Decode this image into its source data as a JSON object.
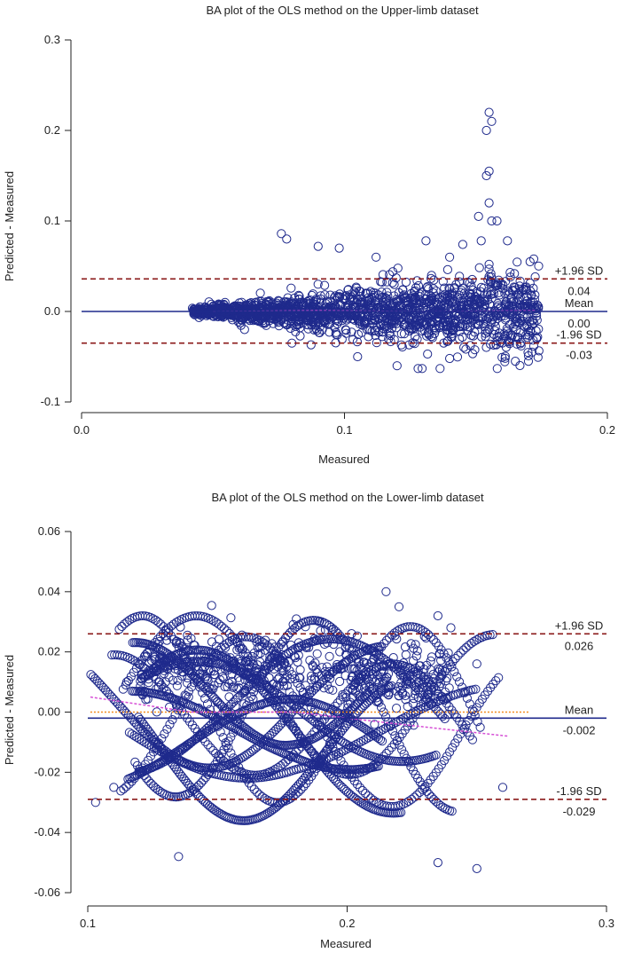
{
  "colors": {
    "points": "#1f2a8c",
    "mean_line": "#1f2a8c",
    "limit_lines": "#8b1a1a",
    "trend_line": "#d64fd6",
    "zero_line": "#f28c1e",
    "axis": "#222222"
  },
  "chart_data": [
    {
      "type": "scatter",
      "title": "BA plot of the OLS method on the Upper-limb dataset",
      "xlabel": "Measured",
      "ylabel": "Predicted - Measured",
      "xlim": [
        0.0,
        0.2
      ],
      "ylim": [
        -0.1,
        0.3
      ],
      "xticks": [
        "0.0",
        "0.1",
        "0.2"
      ],
      "xtick_values": [
        0.0,
        0.1,
        0.2
      ],
      "yticks": [
        "-0.1",
        "0.0",
        "0.1",
        "0.2",
        "0.3"
      ],
      "ytick_values": [
        -0.1,
        0.0,
        0.1,
        0.2,
        0.3
      ],
      "grid": false,
      "series": [
        {
          "kind": "open-circles",
          "x_range": [
            0.042,
            0.174
          ],
          "points": [
            [
              0.155,
              0.22
            ],
            [
              0.156,
              0.21
            ],
            [
              0.154,
              0.2
            ],
            [
              0.155,
              0.155
            ],
            [
              0.154,
              0.15
            ],
            [
              0.155,
              0.12
            ],
            [
              0.156,
              0.1
            ],
            [
              0.151,
              0.105
            ],
            [
              0.158,
              0.1
            ],
            [
              0.076,
              0.086
            ],
            [
              0.078,
              0.08
            ],
            [
              0.131,
              0.078
            ],
            [
              0.152,
              0.078
            ],
            [
              0.162,
              0.078
            ],
            [
              0.145,
              0.074
            ],
            [
              0.09,
              0.072
            ],
            [
              0.098,
              0.07
            ],
            [
              0.14,
              0.06
            ],
            [
              0.172,
              0.058
            ],
            [
              0.112,
              0.06
            ],
            [
              0.128,
              -0.063
            ],
            [
              0.12,
              -0.06
            ],
            [
              0.17,
              -0.055
            ],
            [
              0.165,
              -0.055
            ],
            [
              0.105,
              -0.05
            ],
            [
              0.14,
              -0.052
            ],
            [
              0.08,
              -0.035
            ],
            [
              0.062,
              -0.02
            ],
            [
              0.045,
              0.005
            ],
            [
              0.043,
              0.0
            ],
            [
              0.05,
              -0.005
            ],
            [
              0.173,
              -0.002
            ]
          ]
        }
      ],
      "reference_lines": [
        {
          "name": "upper_loa",
          "label": "+1.96 SD",
          "value_label": "0.04",
          "y": 0.036,
          "style": "dashed"
        },
        {
          "name": "mean",
          "label": "Mean",
          "value_label": "0.00",
          "y": 0.0,
          "style": "solid"
        },
        {
          "name": "lower_loa",
          "label": "-1.96 SD",
          "value_label": "-0.03",
          "y": -0.035,
          "style": "dashed"
        }
      ]
    },
    {
      "type": "scatter",
      "title": "BA plot of the OLS method on the Lower-limb dataset",
      "xlabel": "Measured",
      "ylabel": "Predicted - Measured",
      "xlim": [
        0.1,
        0.3
      ],
      "ylim": [
        -0.06,
        0.06
      ],
      "xticks": [
        "0.1",
        "0.2",
        "0.3"
      ],
      "xtick_values": [
        0.1,
        0.2,
        0.3
      ],
      "yticks": [
        "-0.06",
        "-0.04",
        "-0.02",
        "0.00",
        "0.02",
        "0.04",
        "0.06"
      ],
      "ytick_values": [
        -0.06,
        -0.04,
        -0.02,
        0.0,
        0.02,
        0.04,
        0.06
      ],
      "grid": false,
      "series": [
        {
          "kind": "open-circles",
          "x_range": [
            0.101,
            0.262
          ],
          "points": [
            [
              0.115,
              0.01
            ],
            [
              0.13,
              0.01
            ],
            [
              0.145,
              0.017
            ],
            [
              0.16,
              0.019
            ],
            [
              0.175,
              0.018
            ],
            [
              0.19,
              0.012
            ],
            [
              0.205,
              0.005
            ],
            [
              0.215,
              0.04
            ],
            [
              0.22,
              0.035
            ],
            [
              0.235,
              0.032
            ],
            [
              0.24,
              0.028
            ],
            [
              0.25,
              0.016
            ],
            [
              0.135,
              -0.048
            ],
            [
              0.17,
              -0.02
            ],
            [
              0.2,
              -0.02
            ],
            [
              0.235,
              -0.05
            ],
            [
              0.25,
              -0.052
            ],
            [
              0.26,
              -0.025
            ],
            [
              0.103,
              -0.03
            ],
            [
              0.11,
              -0.025
            ]
          ]
        }
      ],
      "reference_lines": [
        {
          "name": "upper_loa",
          "label": "+1.96 SD",
          "value_label": "0.026",
          "y": 0.026,
          "style": "dashed"
        },
        {
          "name": "mean",
          "label": "Mean",
          "value_label": "-0.002",
          "y": -0.002,
          "style": "solid"
        },
        {
          "name": "lower_loa",
          "label": "-1.96 SD",
          "value_label": "-0.029",
          "y": -0.029,
          "style": "dashed"
        }
      ]
    }
  ]
}
